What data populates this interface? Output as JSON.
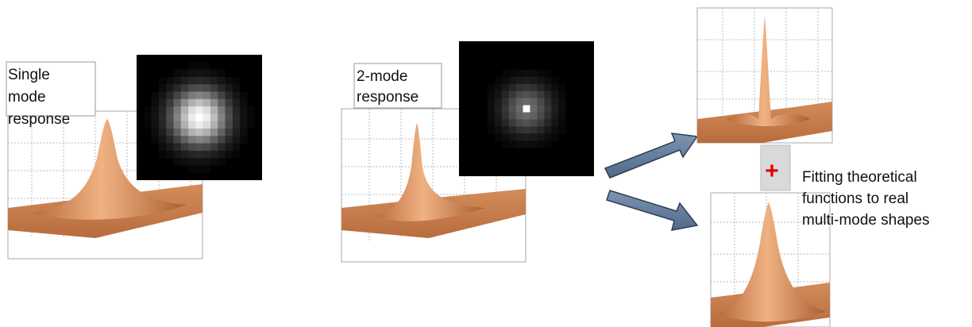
{
  "panels": [
    {
      "label_lines": [
        "Single",
        "mode",
        "response"
      ]
    },
    {
      "label_lines": [
        "2-mode",
        "response"
      ]
    }
  ],
  "plus": "+",
  "caption_lines": [
    "Fitting theoretical",
    "functions to real",
    "multi-mode shapes"
  ]
}
